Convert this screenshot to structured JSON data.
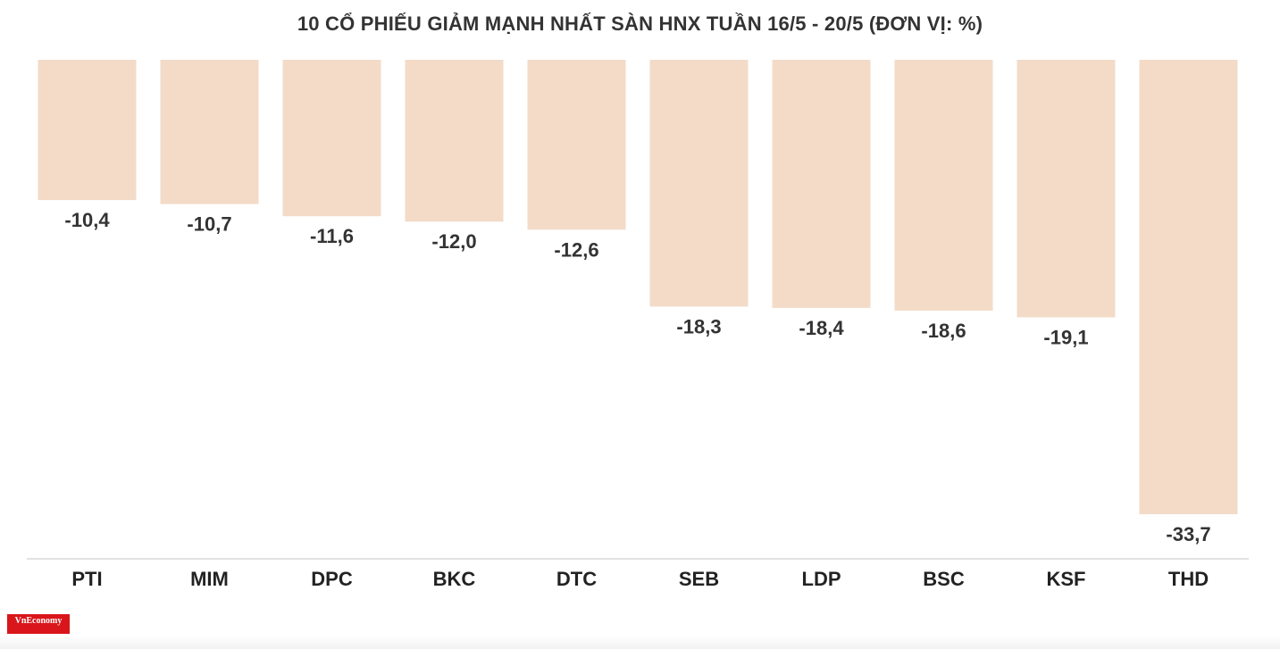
{
  "chart_data": {
    "type": "bar",
    "title": "10 CỔ PHIẾU GIẢM MẠNH NHẤT SÀN HNX TUẦN 16/5 - 20/5 (ĐƠN VỊ: %)",
    "categories": [
      "PTI",
      "MIM",
      "DPC",
      "BKC",
      "DTC",
      "SEB",
      "LDP",
      "BSC",
      "KSF",
      "THD"
    ],
    "values": [
      -10.4,
      -10.7,
      -11.6,
      -12.0,
      -12.6,
      -18.3,
      -18.4,
      -18.6,
      -19.1,
      -33.7
    ],
    "value_labels": [
      "-10,4",
      "-10,7",
      "-11,6",
      "-12,0",
      "-12,6",
      "-18,3",
      "-18,4",
      "-18,6",
      "-19,1",
      "-33,7"
    ],
    "ylim": [
      -33.7,
      0
    ],
    "grid": false,
    "bar_color": "#f3dbc8",
    "axis_color": "#d9d9d9",
    "label_color": "#333333"
  },
  "logo": {
    "text": "VnEconomy",
    "color": "#d9161b"
  }
}
